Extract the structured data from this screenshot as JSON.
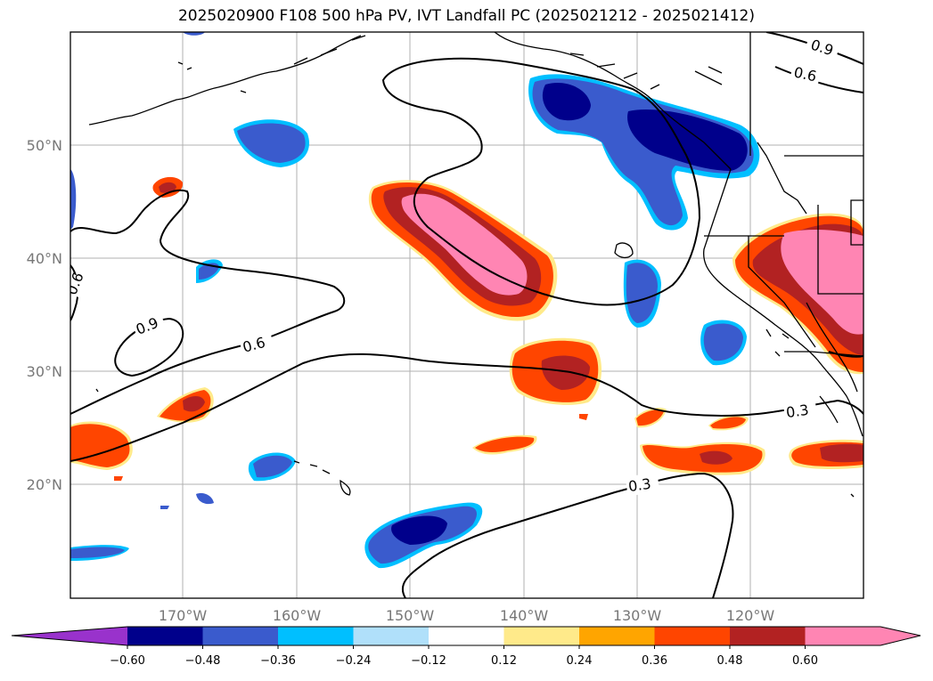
{
  "title": "2025020900 F108 500 hPa PV, IVT Landfall PC (2025021212 - 2025021412)",
  "map": {
    "lat_labels": [
      "50°N",
      "40°N",
      "30°N",
      "20°N"
    ],
    "lon_labels": [
      "170°W",
      "160°W",
      "150°W",
      "140°W",
      "130°W",
      "120°W"
    ],
    "contour_labels": [
      "0.9",
      "0.6",
      "0.9",
      "0.6",
      "0.6",
      "0.3",
      "0.3"
    ]
  },
  "colorbar": {
    "colors": [
      "#9932cc",
      "#00008b",
      "#3a5bcd",
      "#00bfff",
      "#b0e0fa",
      "#ffffff",
      "#ffea8a",
      "#ffa500",
      "#ff4500",
      "#b22222",
      "#ff85b3",
      "#ff85b3"
    ],
    "ticks": [
      "−0.60",
      "−0.48",
      "−0.36",
      "−0.24",
      "−0.12",
      "0.12",
      "0.24",
      "0.36",
      "0.48",
      "0.60"
    ]
  }
}
